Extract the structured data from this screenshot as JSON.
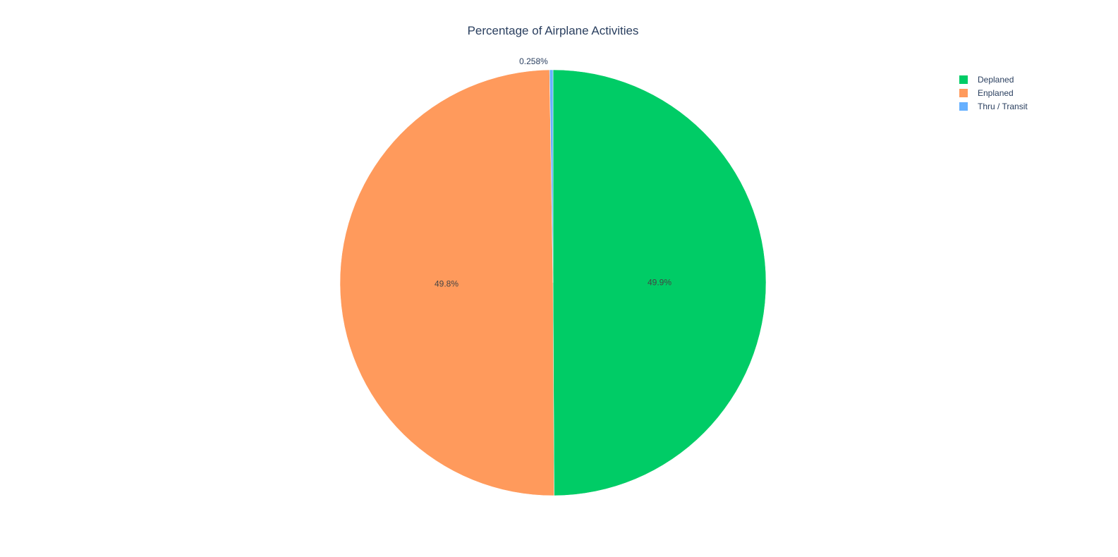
{
  "chart_data": {
    "type": "pie",
    "title": "Percentage of Airplane Activities",
    "labels": [
      "Deplaned",
      "Enplaned",
      "Thru / Transit"
    ],
    "values": [
      49.9,
      49.8,
      0.258
    ],
    "value_labels": [
      "49.9%",
      "49.8%",
      "0.258%"
    ],
    "colors": [
      "#00cc66",
      "#ff9a5c",
      "#66b0ff"
    ],
    "direction": "clockwise",
    "start_angle": "12 o'clock",
    "legend": {
      "position": "top-right",
      "items": [
        "Deplaned",
        "Enplaned",
        "Thru / Transit"
      ]
    }
  }
}
